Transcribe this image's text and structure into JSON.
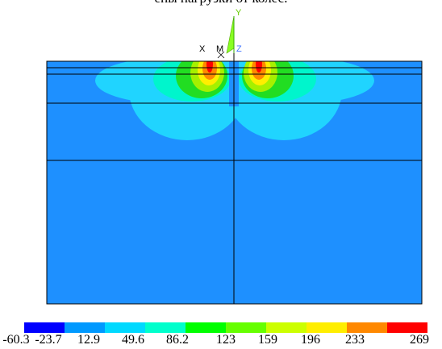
{
  "caption": "ены нагрузки от колес.",
  "triad": {
    "y_label": "Y",
    "x_label": "X",
    "m_label": "M",
    "z_label": "Z"
  },
  "legend": {
    "values": [
      "-60.3",
      "-23.7",
      "12.9",
      "49.6",
      "86.2",
      "123",
      "159",
      "196",
      "233",
      "269"
    ],
    "colors": [
      "#0000ff",
      "#0099ff",
      "#00d9ff",
      "#00ffcc",
      "#00ff00",
      "#66ff00",
      "#ccff00",
      "#ffee00",
      "#ff8800",
      "#ff0000"
    ],
    "background_color": "#1e90ff"
  }
}
